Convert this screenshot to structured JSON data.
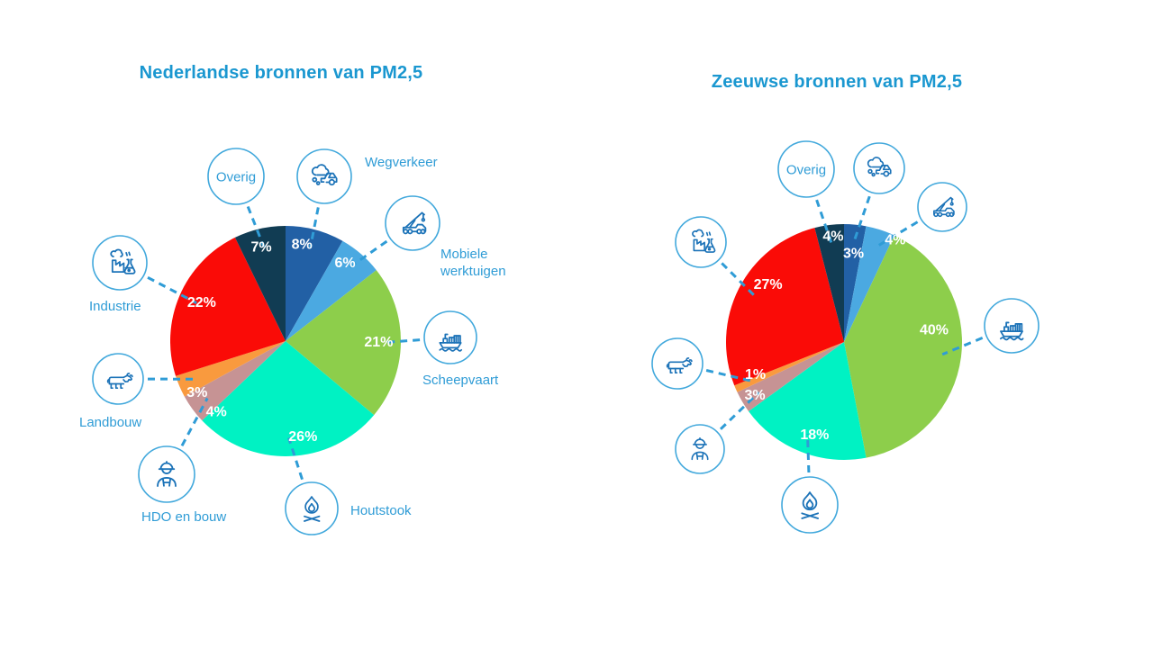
{
  "colors": {
    "background": "#FFFFFF",
    "title": "#1A97D0",
    "label_text": "#2F9CD6",
    "percent_text": "#FFFFFF",
    "connector": "#2F9CD6",
    "circle_stroke": "#41A8DC",
    "icon_stroke": "#1C73B8"
  },
  "chart_data": [
    {
      "type": "pie",
      "title": "Nederlandse bronnen van PM2,5",
      "start_angle_deg": 0,
      "direction": "clockwise",
      "slices": [
        {
          "label": "Wegverkeer",
          "value_pct": 8,
          "color": "#2260A5",
          "icon": "car-exhaust-icon",
          "label_style": "icon-with-text"
        },
        {
          "label": "Mobiele werktuigen",
          "value_pct": 6,
          "color": "#4BA9E1",
          "icon": "crane-truck-icon",
          "label_style": "icon-with-text"
        },
        {
          "label": "Scheepvaart",
          "value_pct": 21,
          "color": "#8DCE4B",
          "icon": "cargo-ship-icon",
          "label_style": "icon-with-text"
        },
        {
          "label": "Houtstook",
          "value_pct": 26,
          "color": "#00F2C3",
          "icon": "campfire-icon",
          "label_style": "icon-with-text"
        },
        {
          "label": "HDO en bouw",
          "value_pct": 4,
          "color": "#C69394",
          "icon": "construction-worker-icon",
          "label_style": "icon-with-text"
        },
        {
          "label": "Landbouw",
          "value_pct": 3,
          "color": "#F99A3E",
          "icon": "cow-icon",
          "label_style": "icon-with-text"
        },
        {
          "label": "Industrie",
          "value_pct": 22,
          "color": "#FA0B07",
          "icon": "factory-icon",
          "label_style": "icon-with-text"
        },
        {
          "label": "Overig",
          "value_pct": 7,
          "color": "#113C53",
          "icon": null,
          "label_style": "text-in-circle"
        }
      ]
    },
    {
      "type": "pie",
      "title": "Zeeuwse bronnen van PM2,5",
      "start_angle_deg": 0,
      "direction": "clockwise",
      "slices": [
        {
          "label": "Wegverkeer",
          "value_pct": 3,
          "color": "#2260A5",
          "icon": "car-exhaust-icon",
          "label_style": "icon-only"
        },
        {
          "label": "Mobiele werktuigen",
          "value_pct": 4,
          "color": "#4BA9E1",
          "icon": "crane-truck-icon",
          "label_style": "icon-only"
        },
        {
          "label": "Scheepvaart",
          "value_pct": 40,
          "color": "#8DCE4B",
          "icon": "cargo-ship-icon",
          "label_style": "icon-only"
        },
        {
          "label": "Houtstook",
          "value_pct": 18,
          "color": "#00F2C3",
          "icon": "campfire-icon",
          "label_style": "icon-only"
        },
        {
          "label": "HDO en bouw",
          "value_pct": 3,
          "color": "#C69394",
          "icon": "construction-worker-icon",
          "label_style": "icon-only"
        },
        {
          "label": "Landbouw",
          "value_pct": 1,
          "color": "#F99A3E",
          "icon": "cow-icon",
          "label_style": "icon-only"
        },
        {
          "label": "Industrie",
          "value_pct": 27,
          "color": "#FA0B07",
          "icon": "factory-icon",
          "label_style": "icon-only"
        },
        {
          "label": "Overig",
          "value_pct": 4,
          "color": "#113C53",
          "icon": null,
          "label_style": "text-in-circle"
        }
      ]
    }
  ]
}
